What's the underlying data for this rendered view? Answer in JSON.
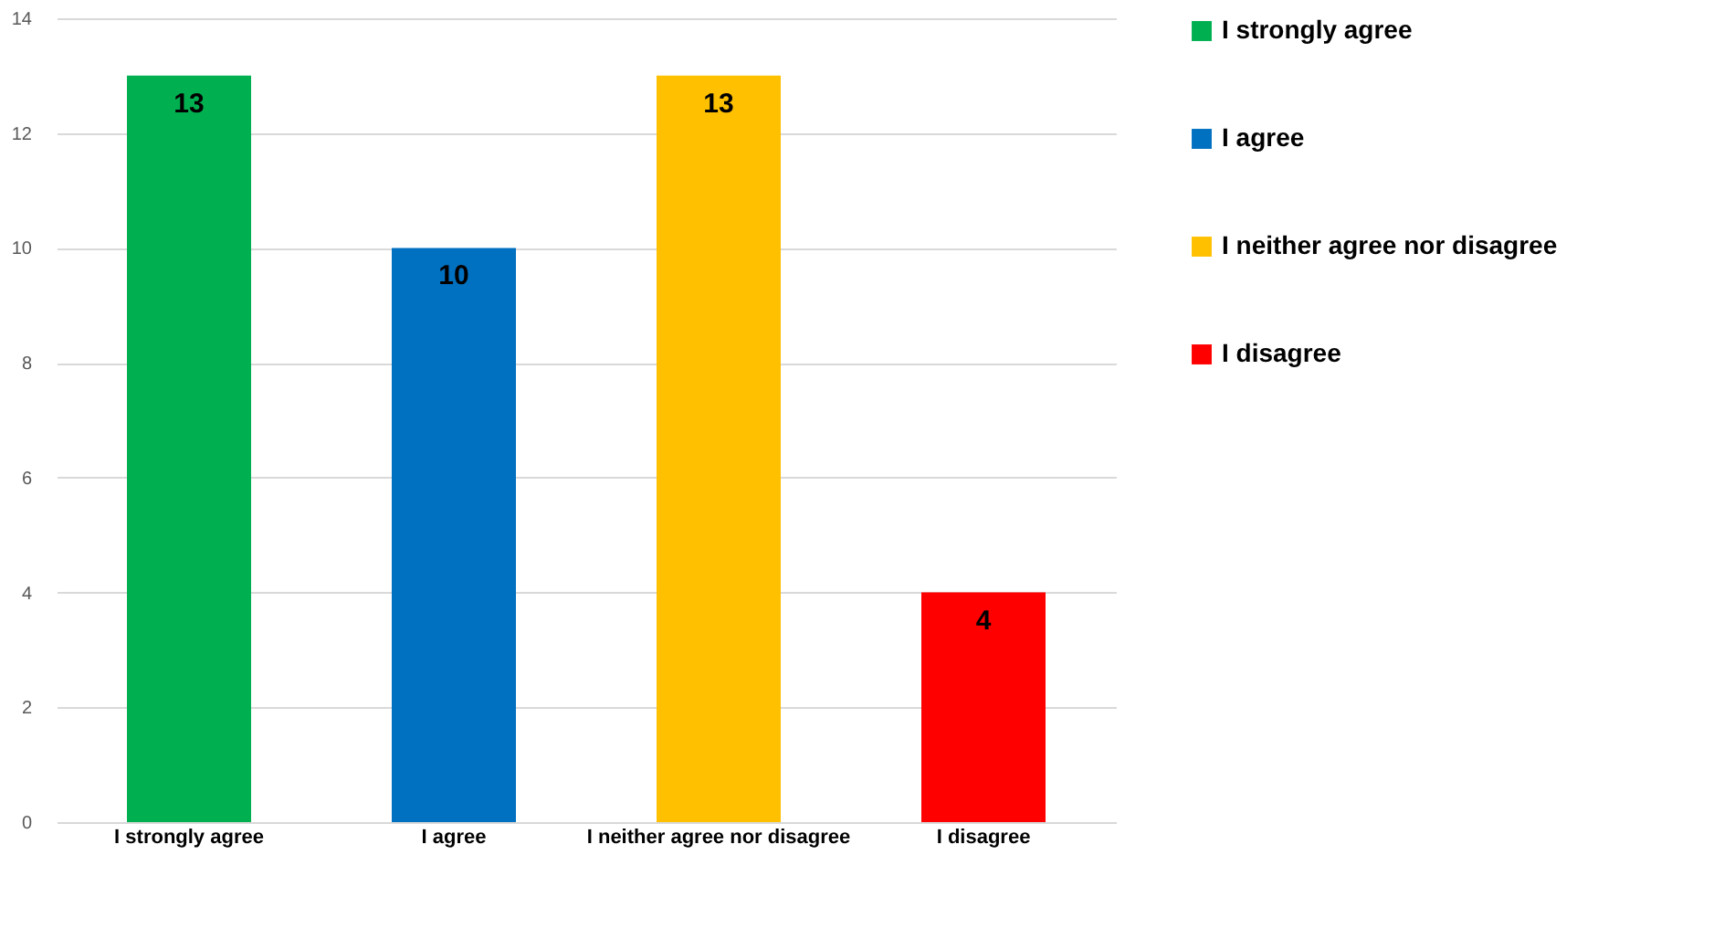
{
  "chart_data": {
    "type": "bar",
    "categories": [
      "I strongly agree",
      "I agree",
      "I neither agree nor disagree",
      "I disagree"
    ],
    "series": [
      {
        "name": "I strongly agree",
        "color": "#00b050",
        "values": [
          13,
          null,
          null,
          null
        ]
      },
      {
        "name": "I agree",
        "color": "#0070c0",
        "values": [
          null,
          10,
          null,
          null
        ]
      },
      {
        "name": "I neither agree nor disagree",
        "color": "#ffc000",
        "values": [
          null,
          null,
          13,
          null
        ]
      },
      {
        "name": "I disagree",
        "color": "#ff0000",
        "values": [
          null,
          null,
          null,
          4
        ]
      }
    ],
    "ylim": [
      0,
      14
    ],
    "yticks": [
      0,
      2,
      4,
      6,
      8,
      10,
      12,
      14
    ],
    "grid": "y",
    "legend": "right",
    "data_labels": true
  }
}
